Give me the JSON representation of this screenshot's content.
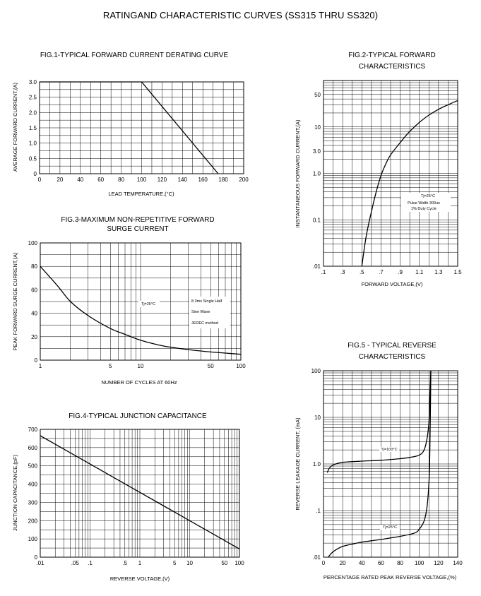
{
  "page": {
    "title": "RATINGAND CHARACTERISTIC CURVES (SS315 THRU SS320)"
  },
  "chart_data": [
    {
      "id": "fig1",
      "type": "line",
      "title": "FIG.1-TYPICAL FORWARD CURRENT DERATING CURVE",
      "xlabel": "LEAD TEMPERATURE,(°C)",
      "ylabel": "AVERAGE FORWARD CURRENT,(A)",
      "xlim": [
        0,
        200
      ],
      "ylim": [
        0,
        3.0
      ],
      "xscale": "linear",
      "yscale": "linear",
      "grid": true,
      "x_ticks": [
        0,
        20,
        40,
        60,
        80,
        100,
        120,
        140,
        160,
        180,
        200
      ],
      "x_tick_labels": [
        "0",
        "20",
        "40",
        "60",
        "80",
        "100",
        "120",
        "140",
        "160",
        "180",
        "200"
      ],
      "y_ticks": [
        0,
        0.5,
        1.0,
        1.5,
        2.0,
        2.5,
        3.0
      ],
      "y_tick_labels": [
        "0",
        "0.5",
        "1.0",
        "1.5",
        "2.0",
        "2.5",
        "3.0"
      ],
      "series": [
        {
          "x": [
            0,
            100,
            175
          ],
          "y": [
            3.0,
            3.0,
            0
          ]
        }
      ]
    },
    {
      "id": "fig2",
      "type": "line",
      "title": "FIG.2-TYPICAL FORWARD CHARACTERISTICS",
      "xlabel": "FORWARD VOLTAGE,(V)",
      "ylabel": "INSTANTANEOUS FORWARD CURRENT,(A)",
      "xlim": [
        0.1,
        1.5
      ],
      "ylim": [
        0.01,
        100
      ],
      "xscale": "linear",
      "yscale": "log",
      "grid": true,
      "x_ticks": [
        0.1,
        0.3,
        0.5,
        0.7,
        0.9,
        1.1,
        1.3,
        1.5
      ],
      "x_tick_labels": [
        ".1",
        ".3",
        ".5",
        ".7",
        ".9",
        "1.1",
        "1.3",
        "1.5"
      ],
      "y_ticks": [
        0.01,
        0.1,
        1.0,
        3.0,
        10,
        50
      ],
      "y_tick_labels": [
        ".01",
        "0.1",
        "1.0",
        "3.0",
        "10",
        "50"
      ],
      "annotations": [
        "Tj=25°C",
        "Pulse Width 300us",
        "1% Duty Cycle"
      ],
      "series": [
        {
          "x": [
            0.5,
            0.52,
            0.55,
            0.6,
            0.65,
            0.7,
            0.75,
            0.8,
            0.9,
            1.0,
            1.1,
            1.2,
            1.3,
            1.4,
            1.5
          ],
          "y": [
            0.01,
            0.02,
            0.05,
            0.15,
            0.4,
            0.9,
            1.6,
            2.5,
            4.6,
            8,
            12.5,
            18,
            24,
            30,
            37
          ]
        }
      ]
    },
    {
      "id": "fig3",
      "type": "line",
      "title": "FIG.3-MAXIMUM NON-REPETITIVE FORWARD SURGE CURRENT",
      "xlabel": "NUMBER OF CYCLES AT 60Hz",
      "ylabel": "PEAK FORWARD SURGE CURRENT,(A)",
      "xlim": [
        1,
        100
      ],
      "ylim": [
        0,
        100
      ],
      "xscale": "log",
      "yscale": "linear",
      "grid": true,
      "x_ticks": [
        1,
        5,
        10,
        50,
        100
      ],
      "x_tick_labels": [
        "1",
        "5",
        "10",
        "50",
        "100"
      ],
      "y_ticks": [
        0,
        20,
        40,
        60,
        80,
        100
      ],
      "y_tick_labels": [
        "0",
        "20",
        "40",
        "60",
        "80",
        "100"
      ],
      "annotations": [
        "Tj=25°C",
        "8.3ms Single Half",
        "Sine Wave",
        "JEDEC method"
      ],
      "series": [
        {
          "x": [
            1,
            1.5,
            2,
            3,
            5,
            7,
            10,
            15,
            20,
            30,
            50,
            70,
            100
          ],
          "y": [
            80,
            63,
            50,
            38,
            27,
            22,
            17,
            13,
            11,
            9,
            7,
            6,
            5
          ]
        }
      ]
    },
    {
      "id": "fig4",
      "type": "line",
      "title": "FIG.4-TYPICAL JUNCTION CAPACITANCE",
      "xlabel": "REVERSE VOLTAGE,(V)",
      "ylabel": "JUNCTION CAPACITANCE,(pF)",
      "xlim": [
        0.01,
        100
      ],
      "ylim": [
        0,
        700
      ],
      "xscale": "log",
      "yscale": "linear",
      "grid": true,
      "x_ticks": [
        0.01,
        0.05,
        0.1,
        0.5,
        1,
        5,
        10,
        50,
        100
      ],
      "x_tick_labels": [
        ".01",
        ".05",
        ".1",
        ".5",
        "1",
        "5",
        "10",
        "50",
        "100"
      ],
      "y_ticks": [
        0,
        100,
        200,
        300,
        400,
        500,
        600,
        700
      ],
      "y_tick_labels": [
        "0",
        "100",
        "200",
        "300",
        "400",
        "500",
        "600",
        "700"
      ],
      "series": [
        {
          "x": [
            0.01,
            0.1,
            1,
            10,
            100
          ],
          "y": [
            665,
            510,
            355,
            200,
            45
          ]
        }
      ]
    },
    {
      "id": "fig5",
      "type": "line",
      "title": "FIG.5 - TYPICAL REVERSE CHARACTERISTICS",
      "xlabel": "PERCENTAGE RATED PEAK REVERSE VOLTAGE,(%)",
      "ylabel": "REVERSE LEAKAGE CURRENT, (mA)",
      "xlim": [
        0,
        140
      ],
      "ylim": [
        0.01,
        100
      ],
      "xscale": "linear",
      "yscale": "log",
      "grid": true,
      "x_ticks": [
        0,
        20,
        40,
        60,
        80,
        100,
        120,
        140
      ],
      "x_tick_labels": [
        "0",
        "20",
        "40",
        "60",
        "80",
        "100",
        "120",
        "140"
      ],
      "y_ticks": [
        0.01,
        0.1,
        1.0,
        10,
        100
      ],
      "y_tick_labels": [
        ".01",
        ".1",
        "1.0",
        "10",
        "100"
      ],
      "series": [
        {
          "name": "Tj=100°C",
          "x": [
            4,
            6,
            10,
            20,
            40,
            60,
            80,
            90,
            100,
            105,
            108,
            110,
            111,
            112
          ],
          "y": [
            0.65,
            0.8,
            0.95,
            1.08,
            1.15,
            1.2,
            1.3,
            1.38,
            1.55,
            2.0,
            3.5,
            8,
            30,
            100
          ]
        },
        {
          "name": "Tj=25°C",
          "x": [
            5,
            8,
            12,
            20,
            30,
            40,
            60,
            80,
            95,
            100,
            105,
            108,
            110,
            111,
            112
          ],
          "y": [
            0.01,
            0.012,
            0.014,
            0.017,
            0.019,
            0.021,
            0.024,
            0.028,
            0.033,
            0.04,
            0.06,
            0.12,
            0.4,
            2,
            100
          ]
        }
      ]
    }
  ]
}
